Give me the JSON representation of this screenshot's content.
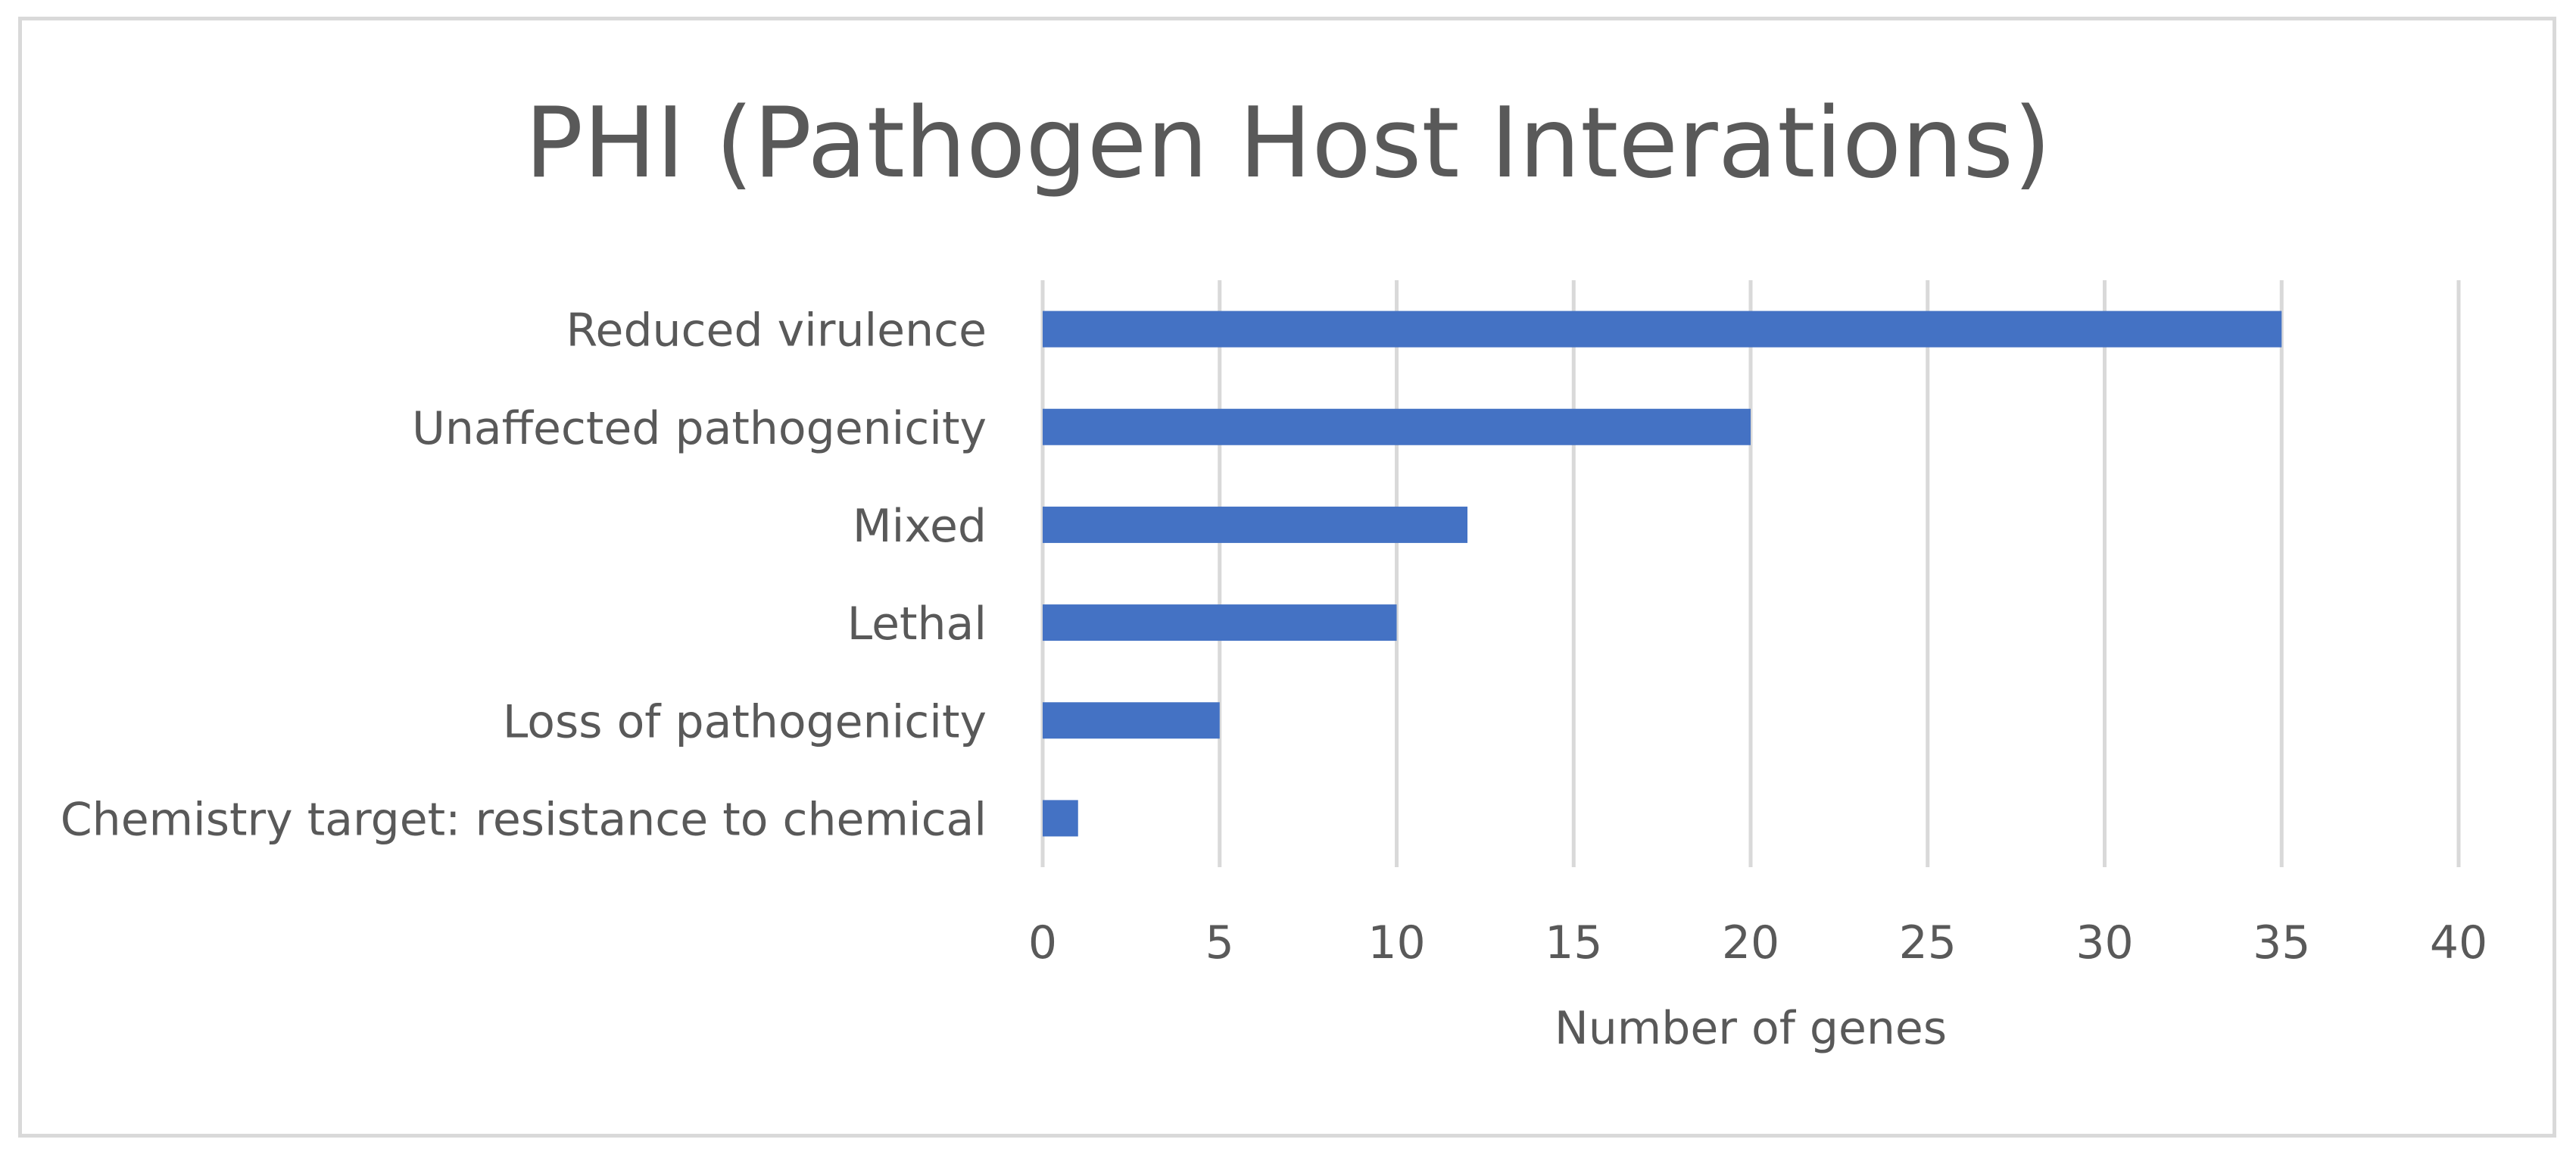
{
  "chart_data": {
    "type": "bar",
    "orientation": "horizontal",
    "title": "PHI (Pathogen Host Interations)",
    "xlabel": "Number of genes",
    "ylabel": "",
    "categories": [
      "Reduced virulence",
      "Unaffected pathogenicity",
      "Mixed",
      "Lethal",
      "Loss of pathogenicity",
      "Chemistry target: resistance to chemical"
    ],
    "values": [
      35,
      20,
      12,
      10,
      5,
      1
    ],
    "xlim": [
      0,
      40
    ],
    "ticks": [
      "0",
      "5",
      "10",
      "15",
      "20",
      "25",
      "30",
      "35",
      "40"
    ],
    "grid": true,
    "legend": "none",
    "bar_color": "#4472c4",
    "grid_color": "#d9d9d9",
    "text_color": "#595959"
  }
}
